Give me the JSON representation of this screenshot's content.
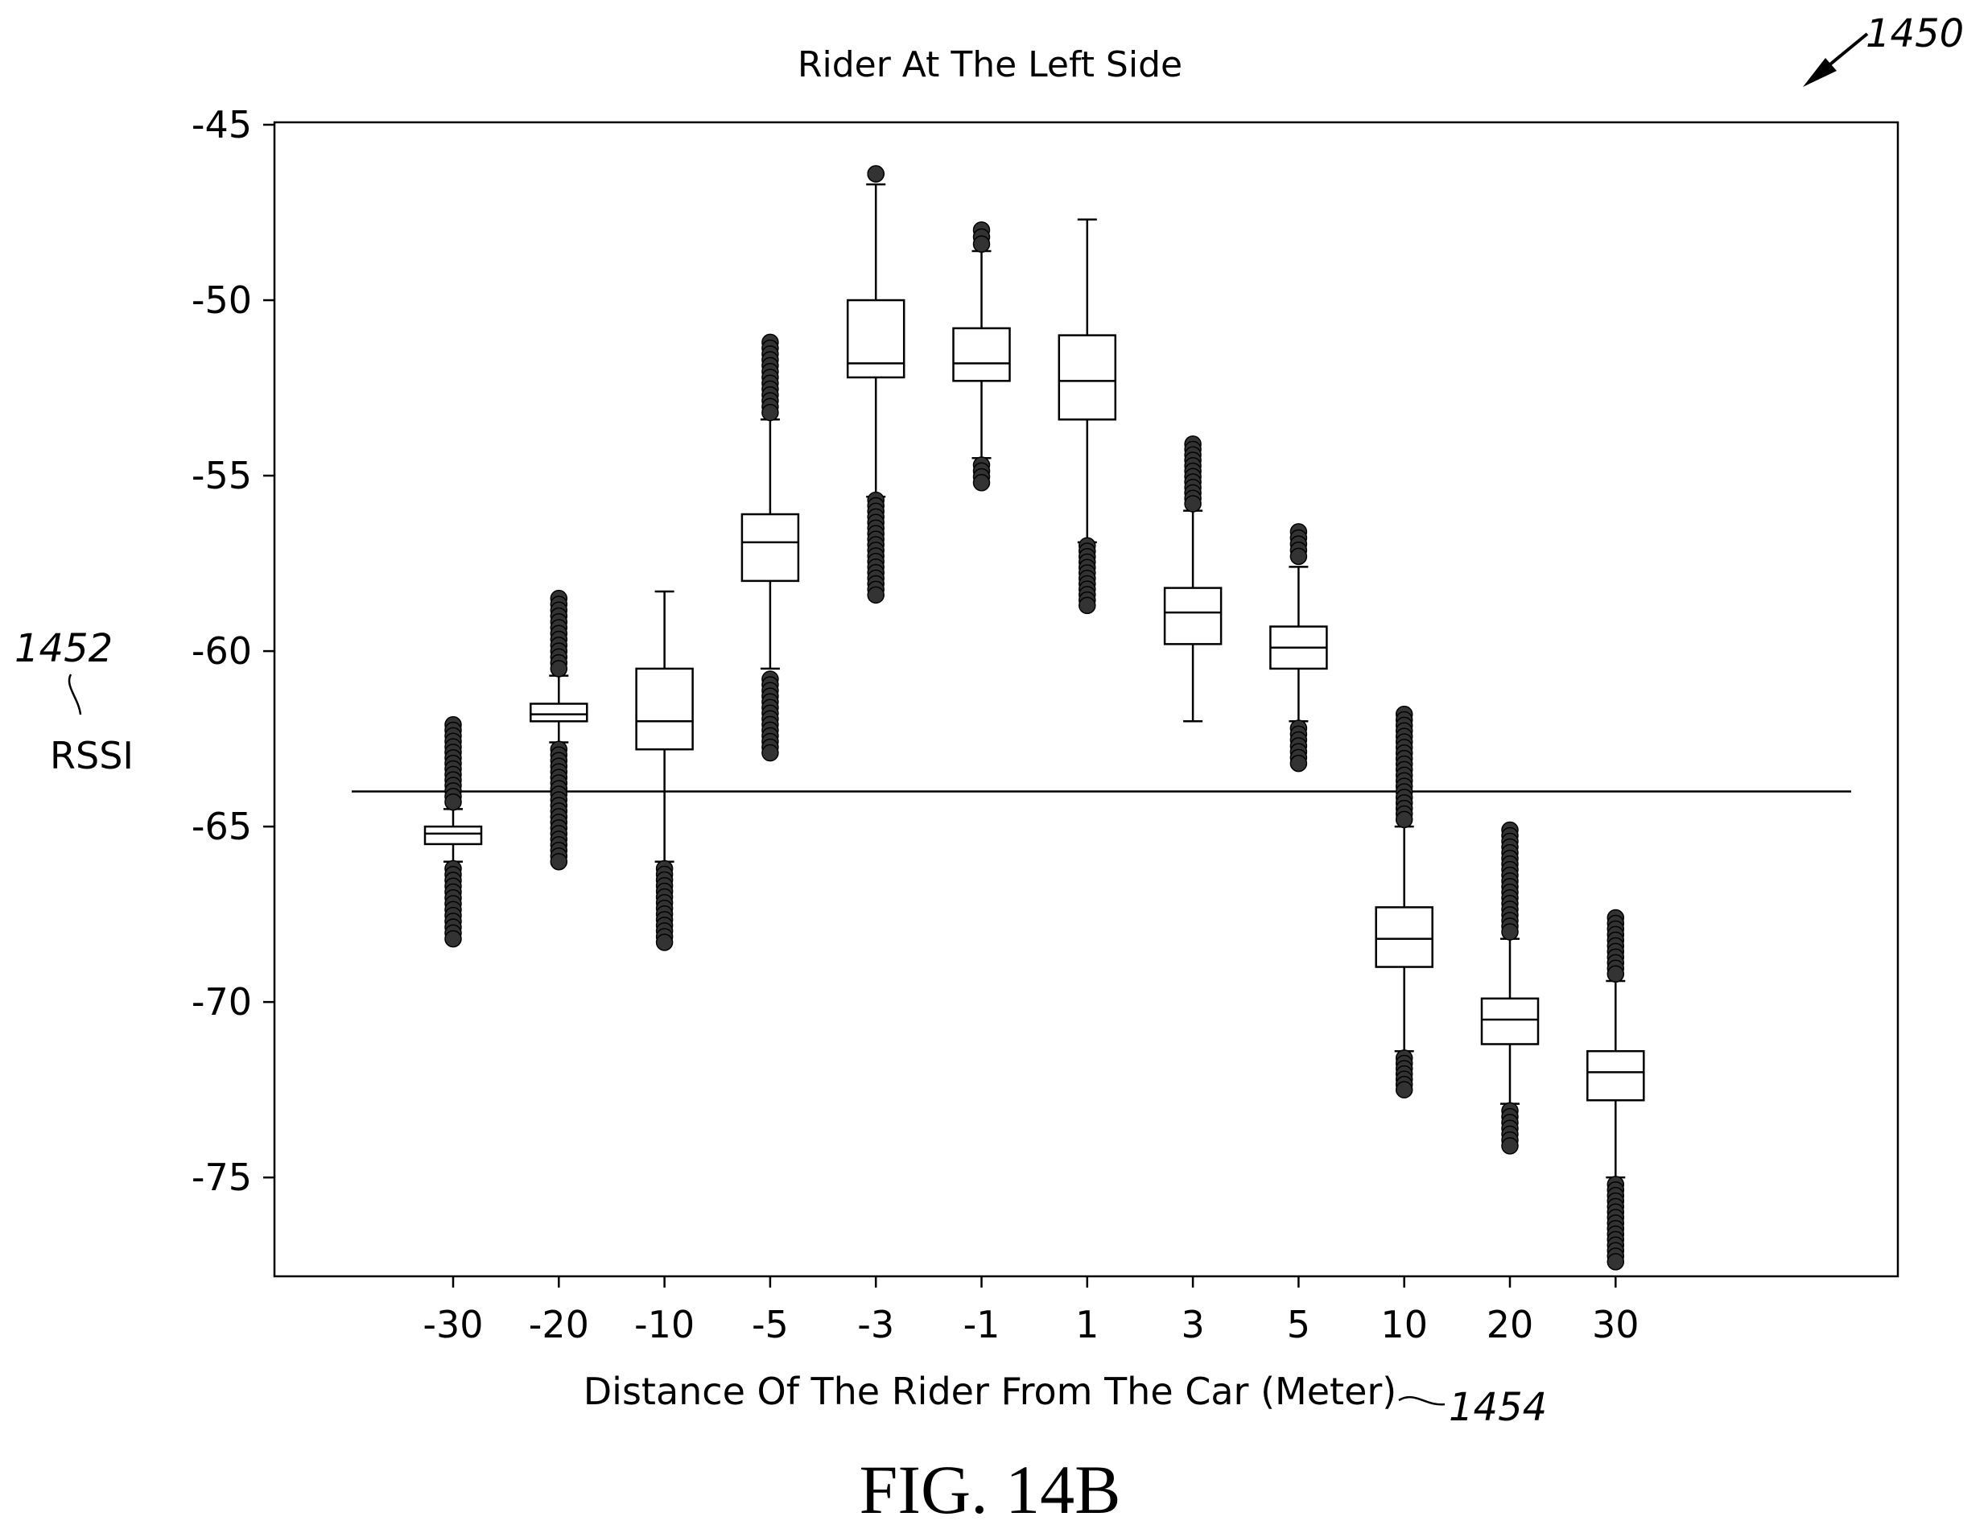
{
  "figure_label": "FIG. 14B",
  "ref_numerals": {
    "figure": "1450",
    "y_axis": "1452",
    "x_axis": "1454"
  },
  "chart_data": {
    "type": "box",
    "title": "Rider At The Left Side",
    "xlabel": "Distance Of The Rider From The Car (Meter)",
    "ylabel": "RSSI",
    "ylim": [
      -78,
      -45
    ],
    "yticks": [
      -45,
      -50,
      -55,
      -60,
      -65,
      -70,
      -75
    ],
    "grid": false,
    "threshold": -64,
    "categories": [
      "-30",
      "-20",
      "-10",
      "-5",
      "-3",
      "-1",
      "1",
      "3",
      "5",
      "10",
      "20",
      "30"
    ],
    "boxes": [
      {
        "q1": -65.5,
        "median": -65.2,
        "q3": -65.0,
        "whisker_low": -66.0,
        "whisker_high": -64.5,
        "outliers_low": [
          -66.2,
          -68.2
        ],
        "outliers_high": [
          -64.3,
          -62.1
        ]
      },
      {
        "q1": -62.0,
        "median": -61.8,
        "q3": -61.5,
        "whisker_low": -62.6,
        "whisker_high": -60.7,
        "outliers_low": [
          -62.8,
          -66.0
        ],
        "outliers_high": [
          -60.5,
          -58.5
        ]
      },
      {
        "q1": -62.8,
        "median": -62.0,
        "q3": -60.5,
        "whisker_low": -66.0,
        "whisker_high": -58.3,
        "outliers_low": [
          -66.2,
          -68.3
        ],
        "outliers_high": []
      },
      {
        "q1": -58.0,
        "median": -56.9,
        "q3": -56.1,
        "whisker_low": -60.5,
        "whisker_high": -53.4,
        "outliers_low": [
          -60.8,
          -62.9
        ],
        "outliers_high": [
          -53.2,
          -51.2
        ]
      },
      {
        "q1": -52.2,
        "median": -51.8,
        "q3": -50.0,
        "whisker_low": -55.6,
        "whisker_high": -46.7,
        "outliers_low": [
          -55.7,
          -58.4
        ],
        "outliers_high": [
          -46.4,
          -46.4
        ]
      },
      {
        "q1": -52.3,
        "median": -51.8,
        "q3": -50.8,
        "whisker_low": -54.5,
        "whisker_high": -48.6,
        "outliers_low": [
          -54.7,
          -55.2
        ],
        "outliers_high": [
          -48.4,
          -48.0
        ]
      },
      {
        "q1": -53.4,
        "median": -52.3,
        "q3": -51.0,
        "whisker_low": -56.9,
        "whisker_high": -47.7,
        "outliers_low": [
          -57.0,
          -58.7
        ],
        "outliers_high": []
      },
      {
        "q1": -59.8,
        "median": -58.9,
        "q3": -58.2,
        "whisker_low": -62.0,
        "whisker_high": -56.0,
        "outliers_low": [],
        "outliers_high": [
          -55.8,
          -54.1
        ]
      },
      {
        "q1": -60.5,
        "median": -59.9,
        "q3": -59.3,
        "whisker_low": -62.0,
        "whisker_high": -57.6,
        "outliers_low": [
          -62.2,
          -63.2
        ],
        "outliers_high": [
          -57.3,
          -56.6
        ]
      },
      {
        "q1": -69.0,
        "median": -68.2,
        "q3": -67.3,
        "whisker_low": -71.4,
        "whisker_high": -65.0,
        "outliers_low": [
          -71.6,
          -72.5
        ],
        "outliers_high": [
          -64.8,
          -61.8
        ]
      },
      {
        "q1": -71.2,
        "median": -70.5,
        "q3": -69.9,
        "whisker_low": -72.9,
        "whisker_high": -68.2,
        "outliers_low": [
          -73.1,
          -74.1
        ],
        "outliers_high": [
          -68.0,
          -65.1
        ]
      },
      {
        "q1": -72.8,
        "median": -72.0,
        "q3": -71.4,
        "whisker_low": -75.0,
        "whisker_high": -69.4,
        "outliers_low": [
          -75.2,
          -77.4
        ],
        "outliers_high": [
          -69.2,
          -67.6
        ]
      }
    ]
  }
}
